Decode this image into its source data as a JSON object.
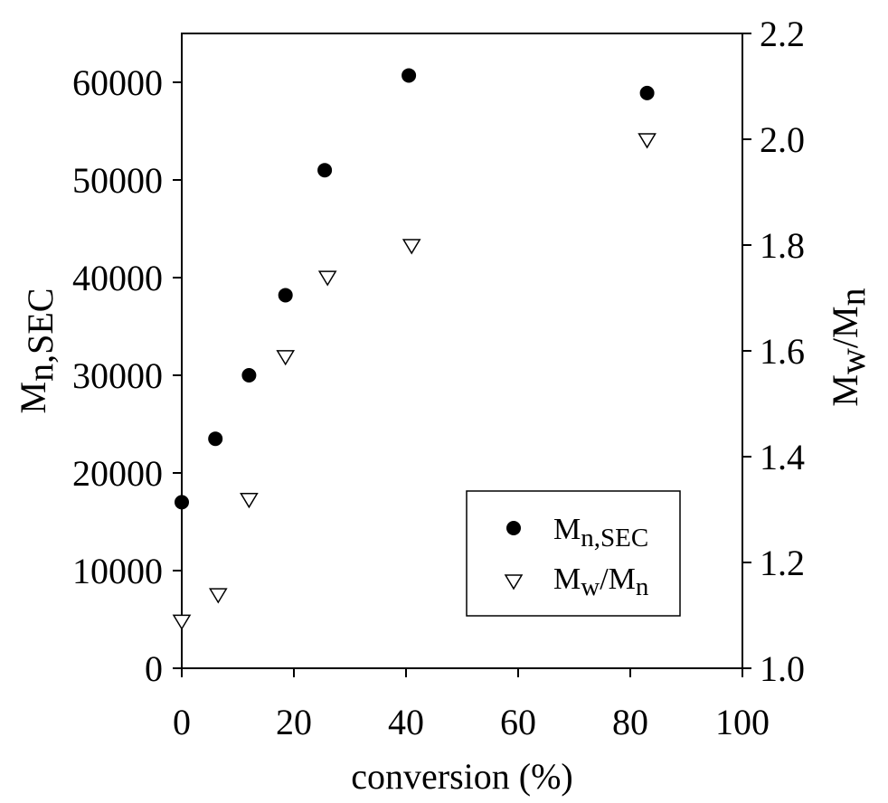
{
  "chart_data": {
    "type": "scatter",
    "title": "",
    "xlabel": "conversion (%)",
    "ylabel_left": {
      "main": "M",
      "sub": "n,SEC"
    },
    "ylabel_right": {
      "m1": "M",
      "s1": "w",
      "slash": "/M",
      "s2": "n"
    },
    "xlim": [
      0,
      100
    ],
    "ylim_left": [
      0,
      65000
    ],
    "ylim_right": [
      1.0,
      2.2
    ],
    "x_ticks": [
      0,
      20,
      40,
      60,
      80,
      100
    ],
    "y_left_ticks": [
      0,
      10000,
      20000,
      30000,
      40000,
      50000,
      60000
    ],
    "y_right_ticks": [
      1.0,
      1.2,
      1.4,
      1.6,
      1.8,
      2.0,
      2.2
    ],
    "x_tick_labels": [
      "0",
      "20",
      "40",
      "60",
      "80",
      "100"
    ],
    "y_left_tick_labels": [
      "0",
      "10000",
      "20000",
      "30000",
      "40000",
      "50000",
      "60000"
    ],
    "y_right_tick_labels": [
      "1.0",
      "1.2",
      "1.4",
      "1.6",
      "1.8",
      "2.0",
      "2.2"
    ],
    "grid": false,
    "legend_position": "bottom-right",
    "series": [
      {
        "name": "M_n,SEC",
        "axis": "left",
        "marker": "filled-circle",
        "legend": {
          "main": "M",
          "sub": "n,SEC"
        },
        "x": [
          0,
          6,
          12,
          18.5,
          25.5,
          40.5,
          83
        ],
        "y": [
          17000,
          23500,
          30000,
          38200,
          51000,
          60700,
          58900
        ]
      },
      {
        "name": "M_w/M_n",
        "axis": "right",
        "marker": "open-triangle-down",
        "legend": {
          "m1": "M",
          "s1": "w",
          "slash": "/M",
          "s2": "n"
        },
        "x": [
          0,
          6.5,
          12,
          18.5,
          26,
          41,
          83
        ],
        "y": [
          1.09,
          1.14,
          1.32,
          1.59,
          1.74,
          1.8,
          2.0
        ]
      }
    ]
  }
}
